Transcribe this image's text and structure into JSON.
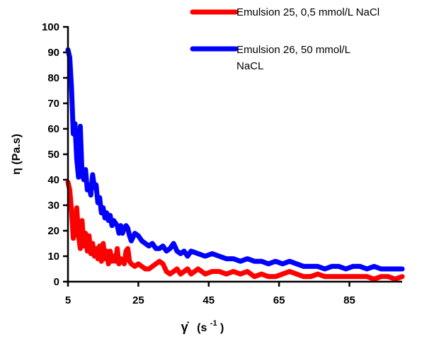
{
  "chart_data": {
    "type": "line",
    "ylabel": "η (Pa.s)",
    "xlabel": {
      "main": "γ̇",
      "unit_prefix": "(s",
      "unit_exp": "-1",
      "unit_suffix": ")"
    },
    "xlim": [
      5,
      100
    ],
    "ylim": [
      0,
      100
    ],
    "x_ticks": [
      5,
      25,
      45,
      65,
      85
    ],
    "y_ticks": [
      0,
      10,
      20,
      30,
      40,
      50,
      60,
      70,
      80,
      90,
      100
    ],
    "legend_placement": "top-right",
    "series": [
      {
        "name": "Emulsion 25, 0,5 mmol/L NaCl",
        "legend_lines": [
          "Emulsion 25, 0,5 mmol/L NaCl"
        ],
        "color": "#ff0000",
        "x": [
          5,
          5.5,
          6,
          6.5,
          7,
          7.5,
          8,
          8.5,
          9,
          9.5,
          10,
          10.5,
          11,
          11.5,
          12,
          12.5,
          13,
          13.5,
          14,
          14.5,
          15,
          15.5,
          16,
          16.5,
          17,
          17.5,
          18,
          18.5,
          19,
          19.5,
          20,
          20.5,
          21,
          21.5,
          22,
          22.5,
          23,
          24,
          25,
          26,
          27,
          28,
          29,
          30,
          31,
          32,
          33,
          34,
          35,
          36,
          37,
          38,
          39,
          40,
          42,
          44,
          46,
          48,
          50,
          52,
          54,
          56,
          58,
          60,
          62,
          64,
          66,
          68,
          70,
          72,
          74,
          76,
          78,
          80,
          82,
          84,
          86,
          88,
          90,
          92,
          94,
          96,
          98,
          100
        ],
        "y": [
          39,
          36,
          28,
          17,
          20,
          29,
          18,
          13,
          24,
          14,
          19,
          12,
          18,
          11,
          15,
          10,
          13,
          9,
          14,
          8,
          15,
          9,
          12,
          7,
          12,
          8,
          10,
          8,
          13,
          7,
          9,
          8,
          7,
          12,
          13,
          8,
          7,
          6,
          7,
          6,
          5,
          5,
          6,
          7,
          8,
          7,
          4,
          3,
          4,
          5,
          3,
          4,
          5,
          3,
          5,
          3,
          4,
          4,
          3,
          4,
          3,
          4,
          2,
          3,
          2,
          2,
          3,
          4,
          3,
          2,
          2,
          3,
          2,
          2,
          2,
          2,
          2,
          2,
          2,
          1,
          2,
          2,
          1,
          2
        ]
      },
      {
        "name": "Emulsion 26, 50 mmol/L NaCL",
        "legend_lines": [
          "Emulsion 26, 50 mmol/L",
          "NaCL"
        ],
        "color": "#0000ff",
        "x": [
          5,
          5.5,
          6,
          6.5,
          7,
          7.5,
          8,
          8.5,
          9,
          9.5,
          10,
          10.5,
          11,
          11.5,
          12,
          12.5,
          13,
          13.5,
          14,
          14.5,
          15,
          15.5,
          16,
          16.5,
          17,
          17.5,
          18,
          18.5,
          19,
          19.5,
          20,
          20.5,
          21,
          21.5,
          22,
          22.5,
          23,
          24,
          25,
          26,
          27,
          28,
          29,
          30,
          31,
          32,
          33,
          34,
          35,
          36,
          37,
          38,
          39,
          40,
          42,
          44,
          46,
          48,
          50,
          52,
          54,
          56,
          58,
          60,
          62,
          64,
          66,
          68,
          70,
          72,
          74,
          76,
          78,
          80,
          82,
          84,
          86,
          88,
          90,
          92,
          94,
          96,
          98,
          100
        ],
        "y": [
          91,
          88,
          76,
          58,
          62,
          48,
          41,
          61,
          42,
          40,
          44,
          36,
          38,
          34,
          42,
          37,
          38,
          31,
          33,
          27,
          29,
          25,
          27,
          24,
          26,
          22,
          24,
          23,
          22,
          19,
          22,
          19,
          21,
          22,
          21,
          18,
          16,
          19,
          18,
          16,
          15,
          14,
          15,
          13,
          13,
          14,
          12,
          13,
          15,
          12,
          11,
          12,
          10,
          12,
          11,
          10,
          11,
          10,
          9,
          9,
          8,
          9,
          8,
          8,
          7,
          8,
          7,
          8,
          7,
          6,
          6,
          6,
          5,
          6,
          6,
          5,
          6,
          6,
          5,
          6,
          5,
          5,
          5,
          5
        ]
      }
    ]
  }
}
